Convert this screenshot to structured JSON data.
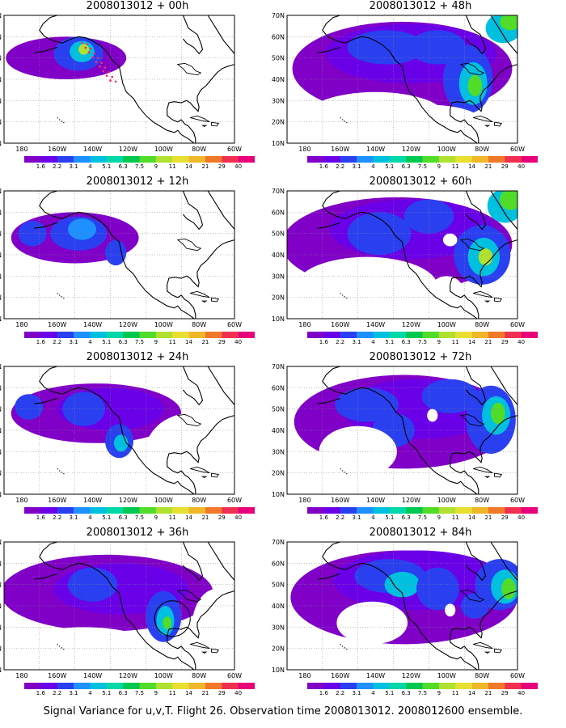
{
  "panels": [
    {
      "title": "2008013012 + 00h",
      "marker": "dots"
    },
    {
      "title": "2008013012 + 48h",
      "marker": null
    },
    {
      "title": "2008013012 + 12h",
      "marker": null
    },
    {
      "title": "2008013012 + 60h",
      "marker": null
    },
    {
      "title": "2008013012 + 24h",
      "marker": null
    },
    {
      "title": "2008013012 + 72h",
      "marker": null
    },
    {
      "title": "2008013012 + 36h",
      "marker": "circle"
    },
    {
      "title": "2008013012 + 84h",
      "marker": null
    }
  ],
  "axes": {
    "lat_labels": [
      "70N",
      "60N",
      "50N",
      "40N",
      "30N",
      "20N",
      "10N"
    ],
    "lon_labels": [
      "180",
      "160W",
      "140W",
      "120W",
      "100W",
      "80W",
      "60W"
    ]
  },
  "colorbar": {
    "labels": [
      "1.6",
      "2.2",
      "3.1",
      "4",
      "5.1",
      "6.3",
      "7.5",
      "9",
      "11",
      "14",
      "21",
      "29",
      "40"
    ],
    "colors": [
      "#8000c8",
      "#6a00e8",
      "#2a40f0",
      "#1e90ff",
      "#00c0e0",
      "#00d8a8",
      "#00c850",
      "#50dc28",
      "#b0e030",
      "#e8e030",
      "#f0b828",
      "#f07828",
      "#f03050",
      "#e8007a"
    ]
  },
  "caption": "Signal Variance for u,v,T. Flight 26. Observation time 2008013012. 2008012600 ensemble."
}
